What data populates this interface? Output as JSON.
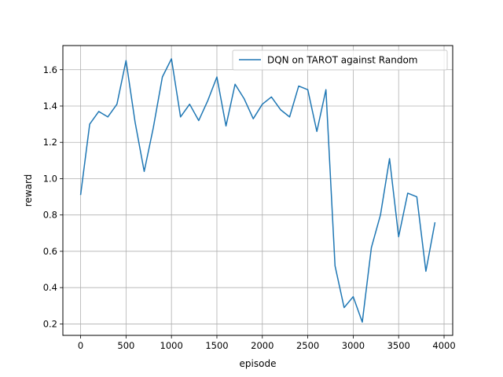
{
  "chart_data": {
    "type": "line",
    "title": "",
    "xlabel": "episode",
    "ylabel": "reward",
    "xlim": [
      -195,
      4095
    ],
    "ylim": [
      0.137,
      1.733
    ],
    "xticks": [
      0,
      500,
      1000,
      1500,
      2000,
      2500,
      3000,
      3500,
      4000
    ],
    "xtick_labels": [
      "0",
      "500",
      "1000",
      "1500",
      "2000",
      "2500",
      "3000",
      "3500",
      "4000"
    ],
    "yticks": [
      0.2,
      0.4,
      0.6,
      0.8,
      1.0,
      1.2,
      1.4,
      1.6
    ],
    "ytick_labels": [
      "0.2",
      "0.4",
      "0.6",
      "0.8",
      "1.0",
      "1.2",
      "1.4",
      "1.6"
    ],
    "grid": true,
    "legend_position": "top-right",
    "series": [
      {
        "name": "DQN on TAROT against Random",
        "color": "#1f77b4",
        "x": [
          0,
          100,
          200,
          300,
          400,
          500,
          600,
          700,
          800,
          900,
          1000,
          1100,
          1200,
          1300,
          1400,
          1500,
          1600,
          1700,
          1800,
          1900,
          2000,
          2100,
          2200,
          2300,
          2400,
          2500,
          2600,
          2700,
          2800,
          2900,
          3000,
          3100,
          3200,
          3300,
          3400,
          3500,
          3600,
          3700,
          3800,
          3900
        ],
        "y": [
          0.91,
          1.3,
          1.37,
          1.34,
          1.41,
          1.65,
          1.31,
          1.04,
          1.28,
          1.56,
          1.66,
          1.34,
          1.41,
          1.32,
          1.43,
          1.56,
          1.29,
          1.52,
          1.44,
          1.33,
          1.41,
          1.45,
          1.38,
          1.34,
          1.51,
          1.49,
          1.26,
          1.49,
          0.52,
          0.29,
          0.35,
          0.21,
          0.62,
          0.8,
          1.11,
          0.68,
          0.92,
          0.9,
          0.49,
          0.76
        ]
      }
    ]
  }
}
